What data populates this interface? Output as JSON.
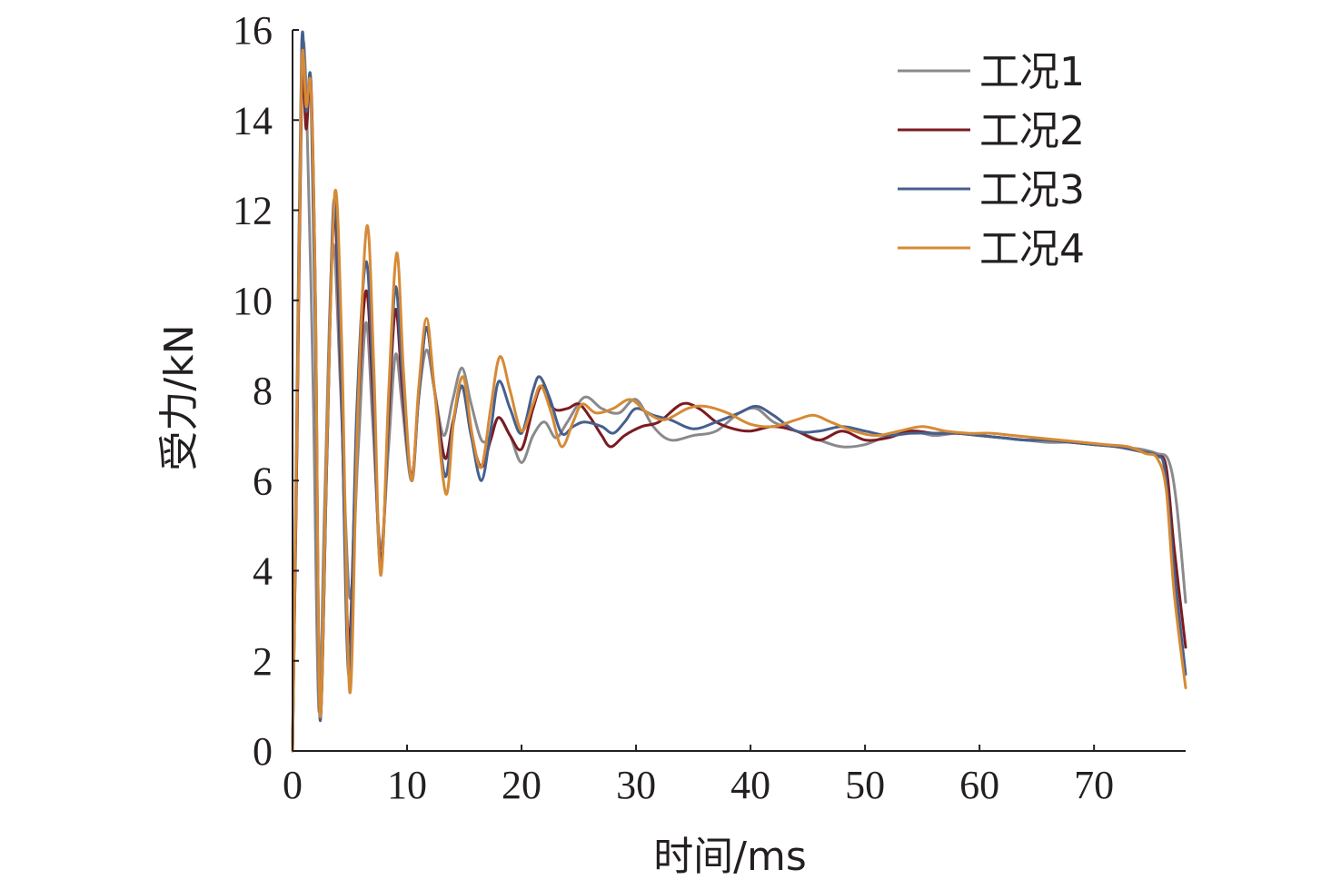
{
  "chart_data": {
    "type": "line",
    "xlabel": "时间/ms",
    "ylabel": "受力/kN",
    "xlim": [
      0,
      78
    ],
    "ylim": [
      0,
      16
    ],
    "xticks": [
      0,
      10,
      20,
      30,
      40,
      50,
      60,
      70
    ],
    "yticks": [
      0,
      2,
      4,
      6,
      8,
      10,
      12,
      14,
      16
    ],
    "xtick_labels": [
      "0",
      "10",
      "20",
      "30",
      "40",
      "50",
      "60",
      "70"
    ],
    "ytick_labels": [
      "0",
      "2",
      "4",
      "6",
      "8",
      "10",
      "12",
      "14",
      "16"
    ],
    "grid": false,
    "legend_position": "top-right",
    "series": [
      {
        "name": "工况1",
        "color": "#8a8a8d",
        "points": [
          [
            0,
            0
          ],
          [
            0.4,
            7.0
          ],
          [
            0.8,
            15.0
          ],
          [
            1.2,
            14.6
          ],
          [
            1.8,
            8.0
          ],
          [
            2.3,
            0.9
          ],
          [
            2.8,
            5.5
          ],
          [
            3.5,
            11.2
          ],
          [
            4.2,
            8.0
          ],
          [
            5.0,
            3.4
          ],
          [
            5.7,
            6.5
          ],
          [
            6.4,
            9.5
          ],
          [
            7.0,
            7.3
          ],
          [
            7.7,
            4.5
          ],
          [
            8.4,
            6.8
          ],
          [
            9.0,
            8.8
          ],
          [
            9.6,
            7.6
          ],
          [
            10.4,
            6.0
          ],
          [
            11.0,
            7.8
          ],
          [
            11.7,
            8.9
          ],
          [
            12.4,
            8.0
          ],
          [
            13.2,
            7.0
          ],
          [
            14.0,
            7.8
          ],
          [
            14.8,
            8.5
          ],
          [
            15.6,
            7.7
          ],
          [
            16.5,
            6.9
          ],
          [
            17.3,
            7.0
          ],
          [
            18.0,
            7.4
          ],
          [
            19.0,
            7.0
          ],
          [
            20.0,
            6.4
          ],
          [
            21.0,
            7.0
          ],
          [
            22.0,
            7.3
          ],
          [
            23.0,
            6.95
          ],
          [
            24.0,
            7.3
          ],
          [
            25.5,
            7.85
          ],
          [
            27.0,
            7.6
          ],
          [
            28.5,
            7.5
          ],
          [
            30.0,
            7.8
          ],
          [
            31.5,
            7.2
          ],
          [
            33.0,
            6.9
          ],
          [
            35.0,
            7.0
          ],
          [
            37.0,
            7.1
          ],
          [
            39.0,
            7.5
          ],
          [
            40.5,
            7.6
          ],
          [
            42.0,
            7.3
          ],
          [
            44.0,
            7.1
          ],
          [
            46.0,
            6.9
          ],
          [
            48.0,
            6.75
          ],
          [
            50.0,
            6.8
          ],
          [
            52.0,
            7.0
          ],
          [
            54.0,
            7.1
          ],
          [
            56.0,
            7.0
          ],
          [
            58.0,
            7.05
          ],
          [
            60.0,
            7.0
          ],
          [
            62.0,
            6.95
          ],
          [
            64.0,
            6.9
          ],
          [
            66.0,
            6.85
          ],
          [
            68.0,
            6.85
          ],
          [
            70.0,
            6.8
          ],
          [
            72.0,
            6.75
          ],
          [
            74.0,
            6.7
          ],
          [
            75.5,
            6.6
          ],
          [
            76.5,
            6.45
          ],
          [
            77.2,
            5.5
          ],
          [
            78.0,
            3.3
          ]
        ]
      },
      {
        "name": "工况2",
        "color": "#7b1b22",
        "points": [
          [
            0,
            0
          ],
          [
            0.4,
            7.0
          ],
          [
            0.8,
            14.8
          ],
          [
            1.2,
            13.8
          ],
          [
            1.6,
            14.85
          ],
          [
            2.0,
            10.0
          ],
          [
            2.4,
            0.8
          ],
          [
            3.0,
            6.5
          ],
          [
            3.6,
            11.9
          ],
          [
            4.2,
            8.5
          ],
          [
            4.9,
            2.4
          ],
          [
            5.6,
            7.0
          ],
          [
            6.4,
            10.2
          ],
          [
            7.0,
            8.0
          ],
          [
            7.7,
            4.2
          ],
          [
            8.4,
            7.5
          ],
          [
            9.0,
            9.8
          ],
          [
            9.6,
            8.0
          ],
          [
            10.4,
            6.1
          ],
          [
            11.0,
            7.8
          ],
          [
            11.7,
            9.4
          ],
          [
            12.4,
            8.0
          ],
          [
            13.3,
            6.5
          ],
          [
            14.0,
            7.3
          ],
          [
            14.8,
            8.1
          ],
          [
            15.6,
            7.0
          ],
          [
            16.5,
            6.3
          ],
          [
            17.3,
            6.9
          ],
          [
            18.0,
            7.4
          ],
          [
            19.0,
            7.0
          ],
          [
            20.0,
            6.7
          ],
          [
            21.0,
            7.6
          ],
          [
            21.8,
            8.1
          ],
          [
            22.8,
            7.6
          ],
          [
            24.0,
            7.6
          ],
          [
            25.0,
            7.7
          ],
          [
            26.0,
            7.4
          ],
          [
            27.0,
            7.0
          ],
          [
            27.8,
            6.75
          ],
          [
            29.0,
            7.0
          ],
          [
            30.5,
            7.2
          ],
          [
            32.0,
            7.3
          ],
          [
            34.0,
            7.7
          ],
          [
            35.5,
            7.6
          ],
          [
            37.0,
            7.3
          ],
          [
            38.5,
            7.15
          ],
          [
            40.0,
            7.1
          ],
          [
            42.0,
            7.2
          ],
          [
            44.0,
            7.1
          ],
          [
            46.0,
            6.9
          ],
          [
            48.0,
            7.1
          ],
          [
            50.0,
            6.9
          ],
          [
            52.0,
            6.95
          ],
          [
            54.0,
            7.1
          ],
          [
            56.0,
            7.05
          ],
          [
            58.0,
            7.05
          ],
          [
            60.0,
            7.0
          ],
          [
            62.0,
            6.95
          ],
          [
            64.0,
            6.9
          ],
          [
            66.0,
            6.9
          ],
          [
            68.0,
            6.85
          ],
          [
            70.0,
            6.8
          ],
          [
            72.0,
            6.75
          ],
          [
            74.0,
            6.65
          ],
          [
            75.5,
            6.55
          ],
          [
            76.3,
            6.3
          ],
          [
            77.0,
            4.5
          ],
          [
            78.0,
            2.3
          ]
        ]
      },
      {
        "name": "工况3",
        "color": "#45608e",
        "points": [
          [
            0,
            0
          ],
          [
            0.4,
            8.0
          ],
          [
            0.8,
            15.7
          ],
          [
            1.2,
            14.2
          ],
          [
            1.6,
            14.8
          ],
          [
            2.0,
            9.0
          ],
          [
            2.4,
            0.7
          ],
          [
            3.0,
            6.5
          ],
          [
            3.6,
            12.2
          ],
          [
            4.2,
            8.8
          ],
          [
            4.9,
            1.7
          ],
          [
            5.6,
            7.5
          ],
          [
            6.4,
            10.85
          ],
          [
            7.0,
            8.4
          ],
          [
            7.7,
            4.0
          ],
          [
            8.4,
            7.8
          ],
          [
            9.0,
            10.3
          ],
          [
            9.6,
            8.3
          ],
          [
            10.4,
            6.0
          ],
          [
            11.0,
            7.8
          ],
          [
            11.7,
            9.4
          ],
          [
            12.4,
            8.0
          ],
          [
            13.3,
            6.1
          ],
          [
            14.0,
            7.2
          ],
          [
            14.8,
            8.1
          ],
          [
            15.6,
            7.0
          ],
          [
            16.5,
            6.0
          ],
          [
            17.3,
            7.1
          ],
          [
            18.0,
            8.2
          ],
          [
            19.0,
            7.6
          ],
          [
            20.0,
            7.05
          ],
          [
            21.0,
            8.0
          ],
          [
            21.6,
            8.3
          ],
          [
            22.5,
            7.8
          ],
          [
            23.5,
            7.05
          ],
          [
            24.5,
            7.2
          ],
          [
            25.5,
            7.3
          ],
          [
            27.0,
            7.2
          ],
          [
            28.0,
            7.05
          ],
          [
            29.0,
            7.3
          ],
          [
            30.0,
            7.6
          ],
          [
            31.5,
            7.45
          ],
          [
            33.0,
            7.35
          ],
          [
            35.0,
            7.15
          ],
          [
            37.0,
            7.3
          ],
          [
            39.0,
            7.5
          ],
          [
            40.5,
            7.65
          ],
          [
            42.0,
            7.45
          ],
          [
            44.0,
            7.1
          ],
          [
            46.0,
            7.1
          ],
          [
            48.0,
            7.2
          ],
          [
            50.0,
            7.1
          ],
          [
            52.0,
            7.0
          ],
          [
            54.0,
            7.05
          ],
          [
            56.0,
            7.05
          ],
          [
            58.0,
            7.05
          ],
          [
            60.0,
            7.0
          ],
          [
            62.0,
            6.95
          ],
          [
            64.0,
            6.9
          ],
          [
            66.0,
            6.9
          ],
          [
            68.0,
            6.85
          ],
          [
            70.0,
            6.8
          ],
          [
            72.0,
            6.75
          ],
          [
            74.0,
            6.65
          ],
          [
            75.5,
            6.55
          ],
          [
            76.2,
            6.2
          ],
          [
            77.0,
            4.0
          ],
          [
            78.0,
            1.7
          ]
        ]
      },
      {
        "name": "工况4",
        "color": "#d68a35",
        "points": [
          [
            0,
            0
          ],
          [
            0.4,
            7.5
          ],
          [
            0.8,
            15.2
          ],
          [
            1.2,
            14.3
          ],
          [
            1.6,
            14.7
          ],
          [
            2.0,
            10.0
          ],
          [
            2.4,
            0.8
          ],
          [
            3.0,
            6.8
          ],
          [
            3.7,
            12.4
          ],
          [
            4.3,
            9.0
          ],
          [
            5.0,
            1.3
          ],
          [
            5.7,
            7.5
          ],
          [
            6.5,
            11.65
          ],
          [
            7.1,
            8.5
          ],
          [
            7.7,
            3.9
          ],
          [
            8.4,
            8.0
          ],
          [
            9.1,
            11.05
          ],
          [
            9.7,
            8.4
          ],
          [
            10.4,
            6.0
          ],
          [
            11.0,
            8.0
          ],
          [
            11.7,
            9.6
          ],
          [
            12.4,
            8.0
          ],
          [
            13.4,
            5.7
          ],
          [
            14.1,
            7.4
          ],
          [
            14.9,
            8.3
          ],
          [
            15.7,
            7.0
          ],
          [
            16.5,
            6.3
          ],
          [
            17.3,
            7.6
          ],
          [
            18.1,
            8.75
          ],
          [
            19.0,
            8.0
          ],
          [
            20.0,
            7.1
          ],
          [
            21.0,
            7.7
          ],
          [
            21.7,
            8.1
          ],
          [
            22.6,
            7.5
          ],
          [
            23.5,
            6.75
          ],
          [
            24.5,
            7.3
          ],
          [
            25.3,
            7.7
          ],
          [
            26.5,
            7.5
          ],
          [
            28.0,
            7.6
          ],
          [
            29.5,
            7.8
          ],
          [
            31.0,
            7.5
          ],
          [
            32.5,
            7.35
          ],
          [
            34.5,
            7.6
          ],
          [
            36.0,
            7.65
          ],
          [
            38.0,
            7.5
          ],
          [
            40.0,
            7.25
          ],
          [
            42.0,
            7.2
          ],
          [
            44.0,
            7.35
          ],
          [
            45.5,
            7.45
          ],
          [
            47.0,
            7.3
          ],
          [
            49.0,
            7.1
          ],
          [
            51.0,
            7.0
          ],
          [
            53.0,
            7.1
          ],
          [
            55.0,
            7.2
          ],
          [
            57.0,
            7.1
          ],
          [
            59.0,
            7.05
          ],
          [
            61.0,
            7.05
          ],
          [
            63.0,
            7.0
          ],
          [
            65.0,
            6.95
          ],
          [
            67.0,
            6.9
          ],
          [
            69.0,
            6.85
          ],
          [
            71.0,
            6.8
          ],
          [
            73.0,
            6.75
          ],
          [
            74.5,
            6.6
          ],
          [
            75.5,
            6.5
          ],
          [
            76.3,
            5.8
          ],
          [
            77.0,
            3.5
          ],
          [
            78.0,
            1.4
          ]
        ]
      }
    ]
  }
}
